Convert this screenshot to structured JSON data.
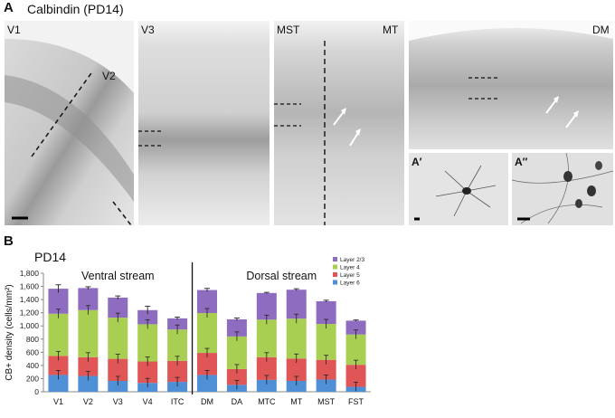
{
  "panelA": {
    "letter": "A",
    "title": "Calbindin (PD14)",
    "images": [
      {
        "labels": [
          "V1",
          "V2"
        ]
      },
      {
        "labels": [
          "V3"
        ]
      },
      {
        "labels": [
          "MST",
          "MT"
        ]
      },
      {
        "labels": [
          "DM"
        ]
      },
      {
        "labels": [
          "A′"
        ]
      },
      {
        "labels": [
          "A″"
        ]
      }
    ]
  },
  "panelB": {
    "letter": "B",
    "subtitle": "PD14"
  },
  "chart_data": {
    "type": "bar",
    "stacked": true,
    "title": "PD14",
    "ylabel": "CB+ density (cells/mm²)",
    "xlabel": "",
    "ylim": [
      0,
      1800
    ],
    "yticks": [
      "0",
      "200",
      "400",
      "600",
      "800",
      "1,000",
      "1,200",
      "1,400",
      "1,600",
      "1,800"
    ],
    "groups": [
      "Ventral stream",
      "Dorsal stream"
    ],
    "categories": [
      "V1",
      "V2",
      "V3",
      "V4",
      "ITC",
      "DM",
      "DA",
      "MTC",
      "MT",
      "MST",
      "FST"
    ],
    "series": [
      {
        "name": "Layer 6",
        "color": "#4f8fd6",
        "values": [
          255,
          240,
          165,
          135,
          150,
          255,
          105,
          180,
          165,
          185,
          75
        ]
      },
      {
        "name": "Layer 5",
        "color": "#e05555",
        "values": [
          290,
          285,
          335,
          325,
          320,
          335,
          240,
          345,
          340,
          300,
          335
        ]
      },
      {
        "name": "Layer 4",
        "color": "#a9cf52",
        "values": [
          640,
          715,
          625,
          565,
          475,
          605,
          495,
          570,
          605,
          545,
          460
        ]
      },
      {
        "name": "Layer 2/3",
        "color": "#8e6cbf",
        "values": [
          380,
          335,
          305,
          215,
          170,
          350,
          260,
          405,
          440,
          345,
          210
        ]
      }
    ],
    "error": [
      60,
      20,
      25,
      60,
      20,
      25,
      20,
      10,
      15,
      15,
      10
    ],
    "legend_position": "top-right",
    "legend_order": [
      "Layer 2/3",
      "Layer 4",
      "Layer 5",
      "Layer 6"
    ]
  }
}
